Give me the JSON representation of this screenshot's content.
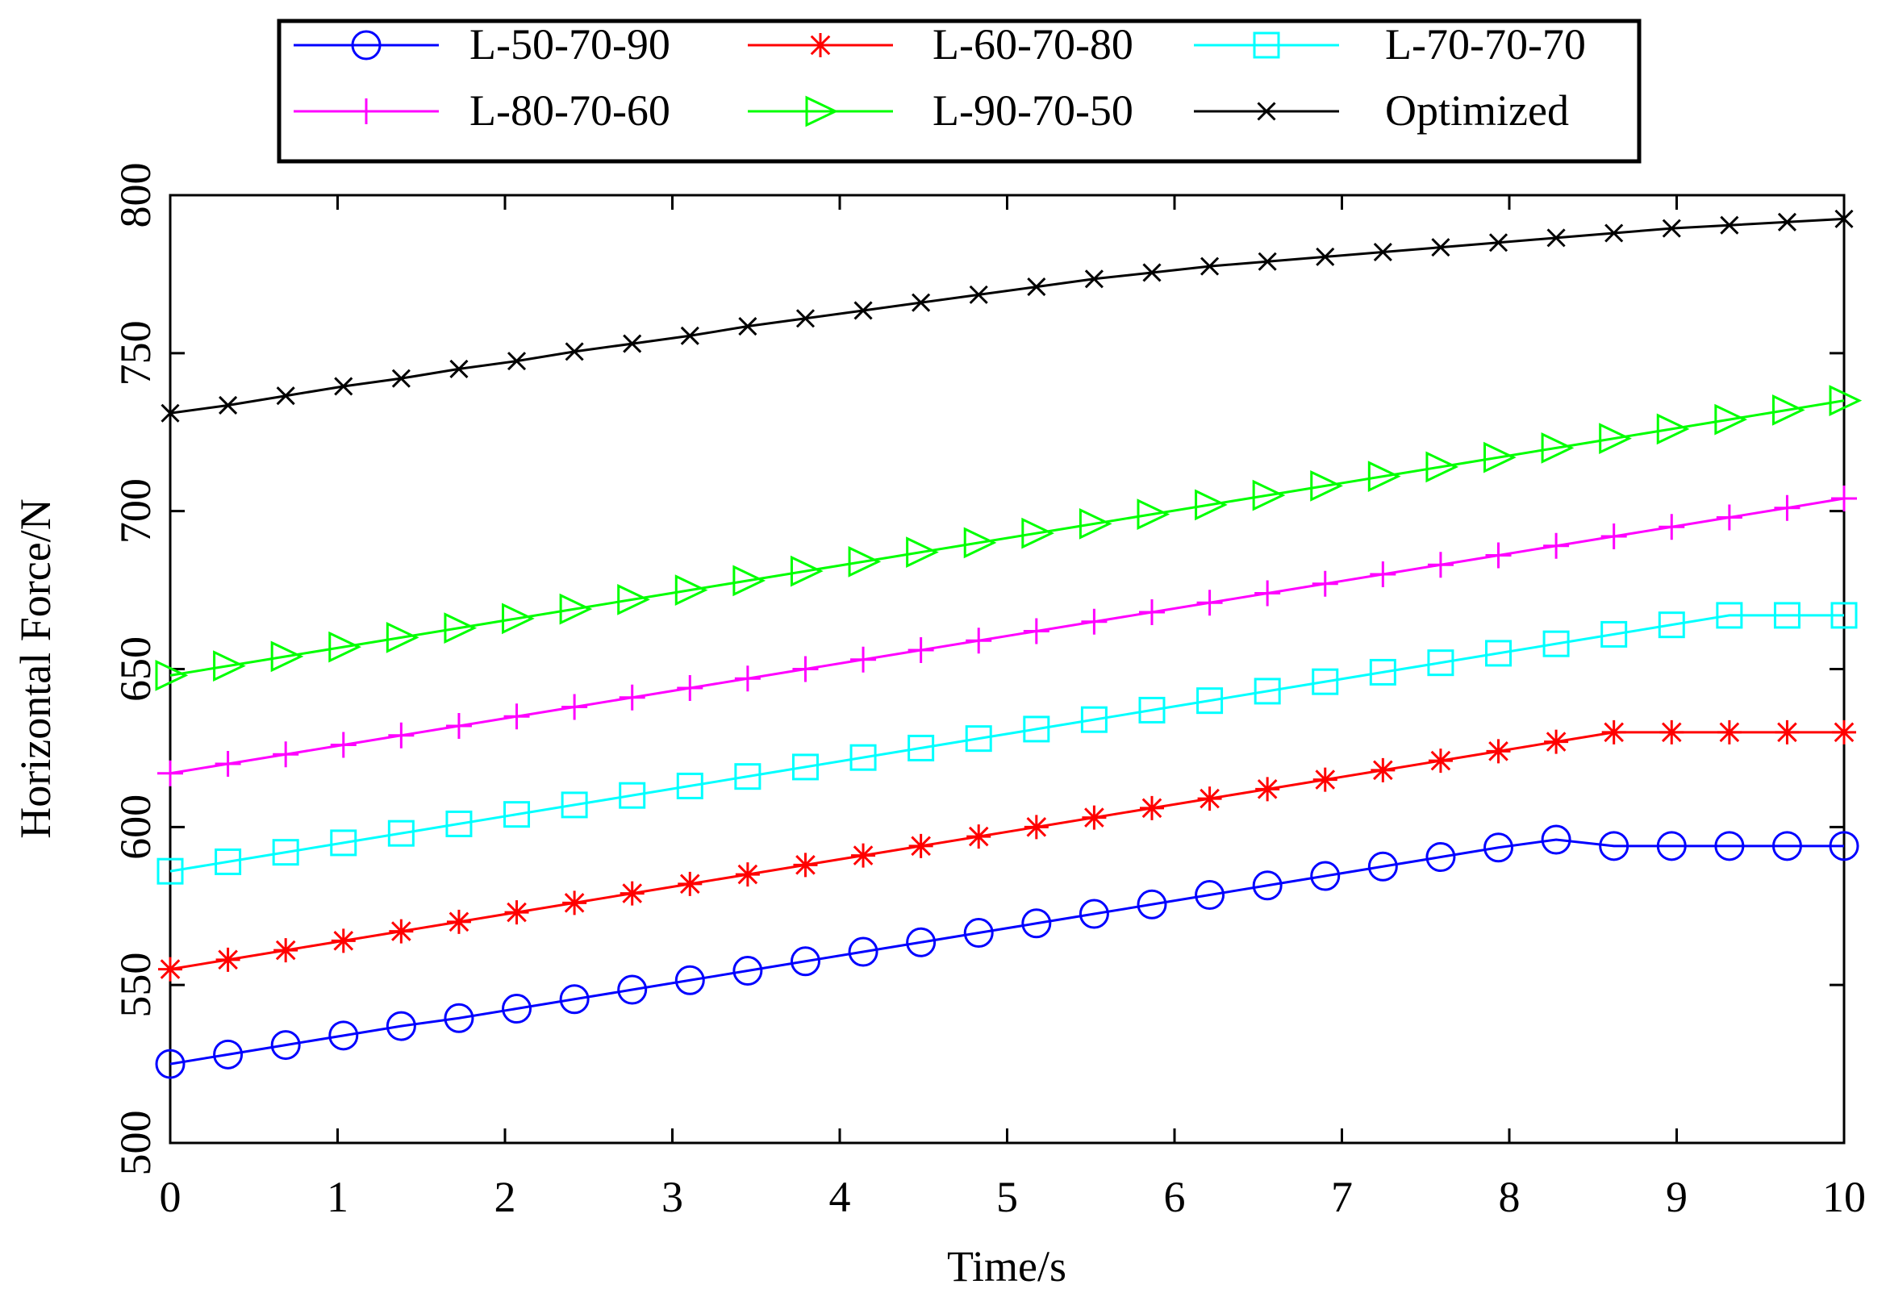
{
  "chart_data": {
    "type": "line",
    "title": "",
    "xlabel": "Time/s",
    "ylabel": "Horizontal Force/N",
    "xlim": [
      0,
      10
    ],
    "ylim": [
      500,
      800
    ],
    "x_ticks": [
      0,
      1,
      2,
      3,
      4,
      5,
      6,
      7,
      8,
      9,
      10
    ],
    "y_ticks": [
      500,
      550,
      600,
      650,
      700,
      750,
      800
    ],
    "x_tick_labels": [
      "0",
      "1",
      "2",
      "3",
      "4",
      "5",
      "6",
      "7",
      "8",
      "9",
      "10"
    ],
    "y_tick_labels": [
      "500",
      "550",
      "600",
      "650",
      "700",
      "750",
      "800"
    ],
    "grid": false,
    "legend_position": "top, outside plot area",
    "x": [
      0,
      0.345,
      0.69,
      1.035,
      1.38,
      1.725,
      2.07,
      2.415,
      2.76,
      3.105,
      3.45,
      3.795,
      4.14,
      4.485,
      4.83,
      5.175,
      5.52,
      5.865,
      6.21,
      6.555,
      6.9,
      7.245,
      7.59,
      7.935,
      8.28,
      8.625,
      8.97,
      9.315,
      9.66,
      10.0
    ],
    "series": [
      {
        "name": "L-50-70-90",
        "color": "#0000ff",
        "marker": "circle",
        "values": [
          525,
          528,
          531,
          534,
          537,
          539.5,
          542.5,
          545.5,
          548.5,
          551.5,
          554.5,
          557.5,
          560.5,
          563.5,
          566.5,
          569.5,
          572.5,
          575.5,
          578.5,
          581.5,
          584.5,
          587.5,
          590.5,
          593.5,
          596,
          594,
          594,
          594,
          594,
          594
        ]
      },
      {
        "name": "L-60-70-80",
        "color": "#ff0000",
        "marker": "asterisk",
        "values": [
          555,
          558,
          561,
          564,
          567,
          570,
          573,
          576,
          579,
          582,
          585,
          588,
          591,
          594,
          597,
          600,
          603,
          606,
          609,
          612,
          615,
          618,
          621,
          624,
          627,
          630,
          630,
          630,
          630,
          630
        ]
      },
      {
        "name": "L-70-70-70",
        "color": "#00ffff",
        "marker": "square",
        "values": [
          586,
          589,
          592,
          595,
          598,
          601,
          604,
          607,
          610,
          613,
          616,
          619,
          622,
          625,
          628,
          631,
          634,
          637,
          640,
          643,
          646,
          649,
          652,
          655,
          658,
          661,
          664,
          667,
          667,
          667
        ]
      },
      {
        "name": "L-80-70-60",
        "color": "#ff00ff",
        "marker": "plus",
        "values": [
          617,
          620,
          623,
          626,
          629,
          632,
          635,
          638,
          641,
          644,
          647,
          650,
          653,
          656,
          659,
          662,
          665,
          668,
          671,
          674,
          677,
          680,
          683,
          686,
          689,
          692,
          695,
          698,
          701,
          704
        ]
      },
      {
        "name": "L-90-70-50",
        "color": "#00ff00",
        "marker": "triangle-right",
        "values": [
          648,
          651,
          654,
          657,
          660,
          663,
          666,
          669,
          672,
          675,
          678,
          681,
          684,
          687,
          690,
          693,
          696,
          699,
          702,
          705,
          708,
          711,
          714,
          717,
          720,
          723,
          726,
          729,
          732,
          735
        ]
      },
      {
        "name": "Optimized",
        "color": "#000000",
        "marker": "x",
        "values": [
          731,
          733.5,
          736.5,
          739.5,
          742,
          745,
          747.5,
          750.5,
          753,
          755.5,
          758.5,
          761,
          763.5,
          766,
          768.5,
          771,
          773.5,
          775.5,
          777.5,
          779,
          780.5,
          782,
          783.5,
          785,
          786.5,
          788,
          789.5,
          790.5,
          791.5,
          792.5
        ]
      }
    ]
  }
}
